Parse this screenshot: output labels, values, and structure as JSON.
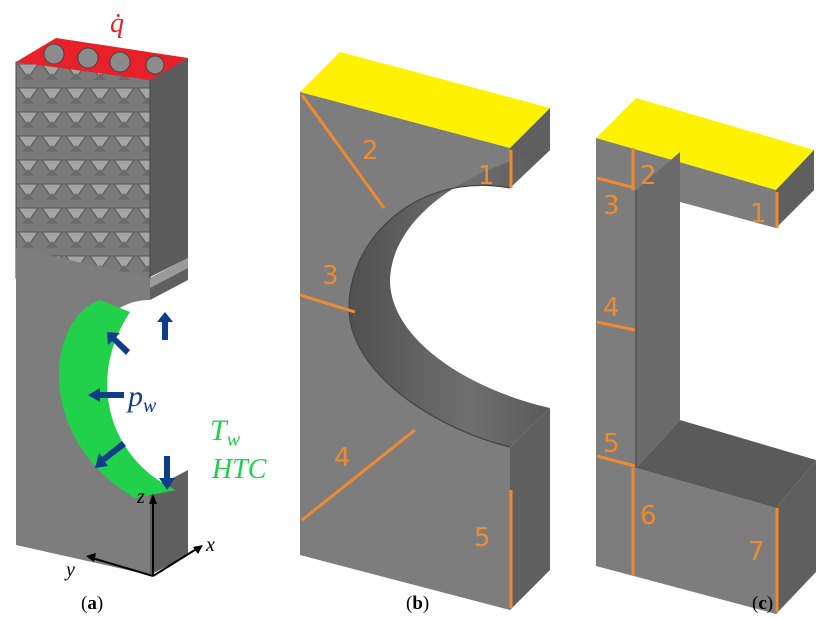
{
  "colors": {
    "body_gray": "#7d7d7d",
    "side_gray": "#5f5f5f",
    "top_gray": "#969696",
    "lattice_gray": "#8a8a8a",
    "heat_red": "#e8202a",
    "wall_green": "#22d14a",
    "pressure_blue": "#0e3d8c",
    "yellow_face": "#fff200",
    "cut_orange": "#f08a2e"
  },
  "panel_a": {
    "heat_flux_symbol": "q̇",
    "pressure_symbol": "p",
    "pressure_subscript": "w",
    "temp_symbol": "T",
    "temp_subscript": "w",
    "htc_label": "HTC",
    "axis_x": "x",
    "axis_y": "y",
    "axis_z": "z",
    "caption_open": "(",
    "caption_letter": "a",
    "caption_close": ")"
  },
  "panel_b": {
    "section_labels": [
      "1",
      "2",
      "3",
      "4",
      "5"
    ],
    "caption_open": "(",
    "caption_letter": "b",
    "caption_close": ")"
  },
  "panel_c": {
    "section_labels": [
      "1",
      "2",
      "3",
      "4",
      "5",
      "6",
      "7"
    ],
    "caption_open": "(",
    "caption_letter": "c",
    "caption_close": ")"
  }
}
